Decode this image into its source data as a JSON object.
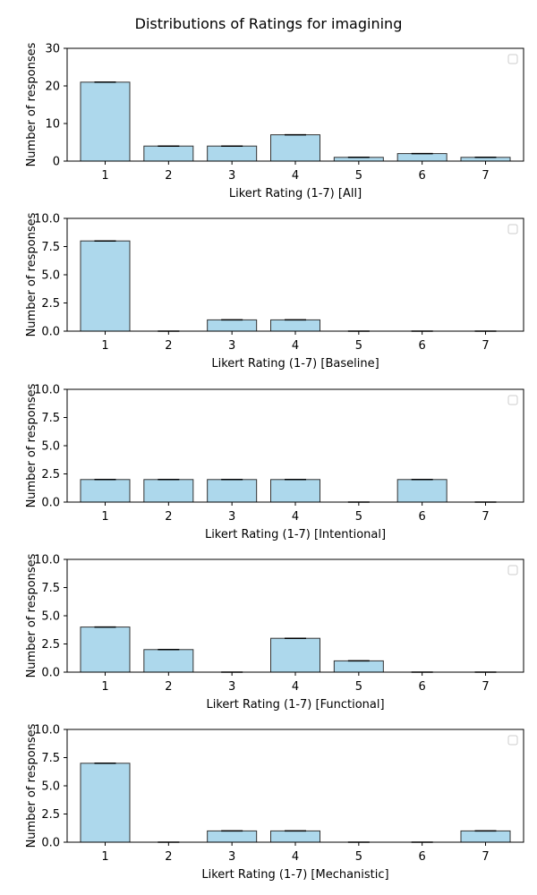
{
  "figure": {
    "title": "Distributions of Ratings for imagining",
    "bar_color": "#add8ec",
    "edge_color": "#333333"
  },
  "chart_data": [
    {
      "type": "bar",
      "categories": [
        "1",
        "2",
        "3",
        "4",
        "5",
        "6",
        "7"
      ],
      "values": [
        21,
        4,
        4,
        7,
        1,
        2,
        1
      ],
      "xlabel": "Likert Rating (1-7) [All]",
      "ylabel": "Number of responses",
      "ylim": [
        0,
        30
      ],
      "yticks": [
        "0",
        "10",
        "20",
        "30"
      ],
      "legend": "top-right (empty)",
      "grid": false
    },
    {
      "type": "bar",
      "categories": [
        "1",
        "2",
        "3",
        "4",
        "5",
        "6",
        "7"
      ],
      "values": [
        8,
        0,
        1,
        1,
        0,
        0,
        0
      ],
      "xlabel": "Likert Rating (1-7) [Baseline]",
      "ylabel": "Number of responses",
      "ylim": [
        0,
        10
      ],
      "yticks": [
        "0.0",
        "2.5",
        "5.0",
        "7.5",
        "10.0"
      ],
      "legend": "top-right (empty)",
      "grid": false
    },
    {
      "type": "bar",
      "categories": [
        "1",
        "2",
        "3",
        "4",
        "5",
        "6",
        "7"
      ],
      "values": [
        2,
        2,
        2,
        2,
        0,
        2,
        0
      ],
      "xlabel": "Likert Rating (1-7) [Intentional]",
      "ylabel": "Number of responses",
      "ylim": [
        0,
        10
      ],
      "yticks": [
        "0.0",
        "2.5",
        "5.0",
        "7.5",
        "10.0"
      ],
      "legend": "top-right (empty)",
      "grid": false
    },
    {
      "type": "bar",
      "categories": [
        "1",
        "2",
        "3",
        "4",
        "5",
        "6",
        "7"
      ],
      "values": [
        4,
        2,
        0,
        3,
        1,
        0,
        0
      ],
      "xlabel": "Likert Rating (1-7) [Functional]",
      "ylabel": "Number of responses",
      "ylim": [
        0,
        10
      ],
      "yticks": [
        "0.0",
        "2.5",
        "5.0",
        "7.5",
        "10.0"
      ],
      "legend": "top-right (empty)",
      "grid": false
    },
    {
      "type": "bar",
      "categories": [
        "1",
        "2",
        "3",
        "4",
        "5",
        "6",
        "7"
      ],
      "values": [
        7,
        0,
        1,
        1,
        0,
        0,
        1
      ],
      "xlabel": "Likert Rating (1-7) [Mechanistic]",
      "ylabel": "Number of responses",
      "ylim": [
        0,
        10
      ],
      "yticks": [
        "0.0",
        "2.5",
        "5.0",
        "7.5",
        "10.0"
      ],
      "legend": "top-right (empty)",
      "grid": false
    }
  ]
}
